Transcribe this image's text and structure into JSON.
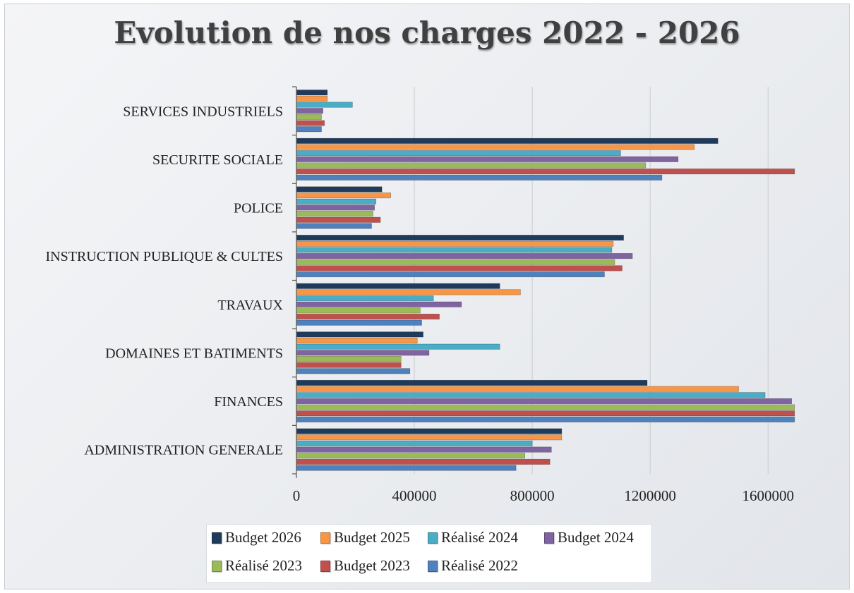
{
  "chart_data": {
    "type": "bar",
    "orientation": "horizontal",
    "title": "Evolution de nos charges 2022 - 2026",
    "categories": [
      "SERVICES INDUSTRIELS",
      "SECURITE SOCIALE",
      "POLICE",
      "INSTRUCTION PUBLIQUE & CULTES",
      "TRAVAUX",
      "DOMAINES ET BATIMENTS",
      "FINANCES",
      "ADMINISTRATION GENERALE"
    ],
    "series": [
      {
        "name": "Budget 2026",
        "color": "#1f3b5c",
        "values": [
          105000,
          1430000,
          290000,
          1110000,
          690000,
          430000,
          1190000,
          900000
        ]
      },
      {
        "name": "Budget 2025",
        "color": "#f79646",
        "values": [
          105000,
          1350000,
          320000,
          1075000,
          760000,
          410000,
          1500000,
          900000
        ]
      },
      {
        "name": "Réalisé 2024",
        "color": "#4bacc6",
        "values": [
          190000,
          1100000,
          270000,
          1070000,
          465000,
          690000,
          1590000,
          800000
        ]
      },
      {
        "name": "Budget 2024",
        "color": "#8064a2",
        "values": [
          90000,
          1295000,
          265000,
          1140000,
          560000,
          450000,
          1680000,
          865000
        ]
      },
      {
        "name": "Réalisé 2023",
        "color": "#9bbb59",
        "values": [
          85000,
          1185000,
          260000,
          1080000,
          420000,
          355000,
          1690000,
          775000
        ]
      },
      {
        "name": "Budget 2023",
        "color": "#c0504d",
        "values": [
          95000,
          1690000,
          285000,
          1105000,
          485000,
          355000,
          1690000,
          860000
        ]
      },
      {
        "name": "Réalisé 2022",
        "color": "#4f81bd",
        "values": [
          85000,
          1240000,
          255000,
          1045000,
          425000,
          385000,
          1690000,
          745000
        ]
      }
    ],
    "xlim": [
      0,
      1700000
    ],
    "xticks": [
      0,
      400000,
      800000,
      1200000,
      1600000
    ],
    "grid": true,
    "legend_position": "bottom"
  }
}
